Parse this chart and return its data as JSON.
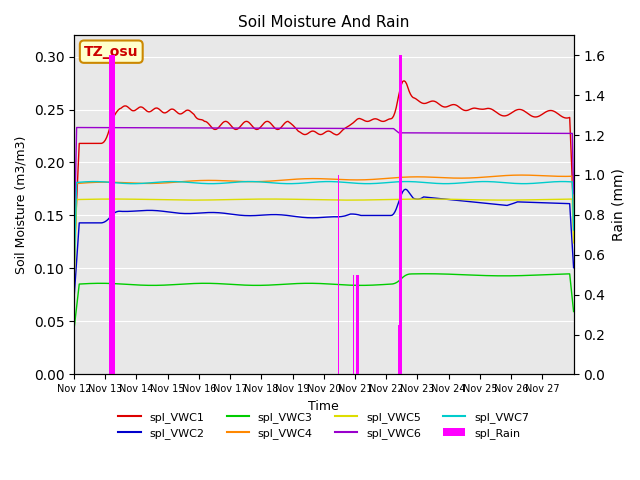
{
  "title": "Soil Moisture And Rain",
  "xlabel": "Time",
  "ylabel_left": "Soil Moisture (m3/m3)",
  "ylabel_right": "Rain (mm)",
  "annotation": "TZ_osu",
  "xlim_days": [
    0,
    16
  ],
  "ylim_left": [
    0.0,
    0.32
  ],
  "ylim_right": [
    0.0,
    1.7
  ],
  "x_tick_labels": [
    "Nov 12",
    "Nov 13",
    "Nov 14",
    "Nov 15",
    "Nov 16",
    "Nov 17",
    "Nov 18",
    "Nov 19",
    "Nov 20",
    "Nov 21",
    "Nov 22",
    "Nov 23",
    "Nov 24",
    "Nov 25",
    "Nov 26",
    "Nov 27"
  ],
  "series_colors": {
    "spl_VWC1": "#dd0000",
    "spl_VWC2": "#0000cc",
    "spl_VWC3": "#00cc00",
    "spl_VWC4": "#ff8800",
    "spl_VWC5": "#dddd00",
    "spl_VWC6": "#9900cc",
    "spl_VWC7": "#00cccc",
    "spl_Rain": "#ff00ff"
  },
  "background_color": "#e8e8e8",
  "annotation_bg": "#ffffcc",
  "annotation_border": "#cc8800",
  "annotation_text_color": "#cc0000"
}
